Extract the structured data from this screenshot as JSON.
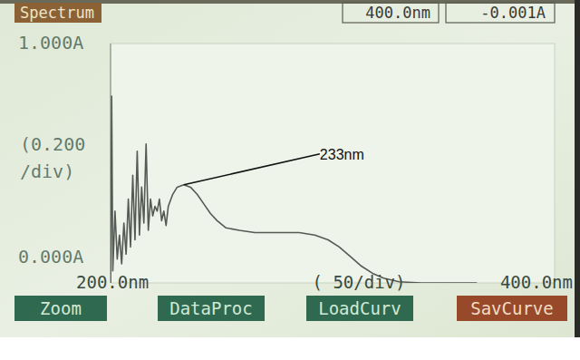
{
  "chart_data": {
    "type": "line",
    "title": "Spectrum",
    "readouts": [
      "400.0nm",
      "-0.001A"
    ],
    "x_label": "( 50/div)",
    "y_label": [
      "(0.200",
      "/div)"
    ],
    "color": "#555a55",
    "grid": false,
    "xlim": [
      200,
      400
    ],
    "ylim": [
      0,
      1
    ],
    "xticks": [
      {
        "value": 200,
        "label": "200.0nm"
      },
      {
        "value": 400,
        "label": "400.0nm"
      }
    ],
    "yticks": [
      {
        "value": 0,
        "label": "0.000A"
      },
      {
        "value": 1,
        "label": "1.000A"
      }
    ],
    "x": [
      200,
      200.5,
      201,
      202,
      203,
      204,
      205,
      206,
      207,
      208,
      209,
      210,
      211,
      212,
      213,
      214,
      215,
      216,
      217,
      218,
      219,
      220,
      221,
      222,
      223,
      224,
      225,
      226,
      228,
      230,
      233,
      236,
      239,
      242,
      245,
      248,
      252,
      258,
      265,
      275,
      285,
      292,
      298,
      303,
      308,
      313,
      318,
      323,
      330,
      340,
      350,
      365
    ],
    "values": [
      0.0,
      0.78,
      0.05,
      0.3,
      0.1,
      0.2,
      0.08,
      0.25,
      0.12,
      0.35,
      0.15,
      0.45,
      0.18,
      0.55,
      0.2,
      0.4,
      0.25,
      0.58,
      0.22,
      0.35,
      0.28,
      0.32,
      0.3,
      0.35,
      0.26,
      0.3,
      0.24,
      0.32,
      0.37,
      0.4,
      0.41,
      0.4,
      0.37,
      0.33,
      0.29,
      0.26,
      0.23,
      0.22,
      0.21,
      0.21,
      0.21,
      0.2,
      0.18,
      0.15,
      0.11,
      0.07,
      0.04,
      0.02,
      0.005,
      0.0,
      0.0,
      0.0
    ],
    "annotations": [
      {
        "text": "233nm",
        "x": 233,
        "y": 0.41
      }
    ],
    "buttons": [
      "Zoom",
      "DataProc",
      "LoadCurv",
      "SavCurve"
    ]
  }
}
